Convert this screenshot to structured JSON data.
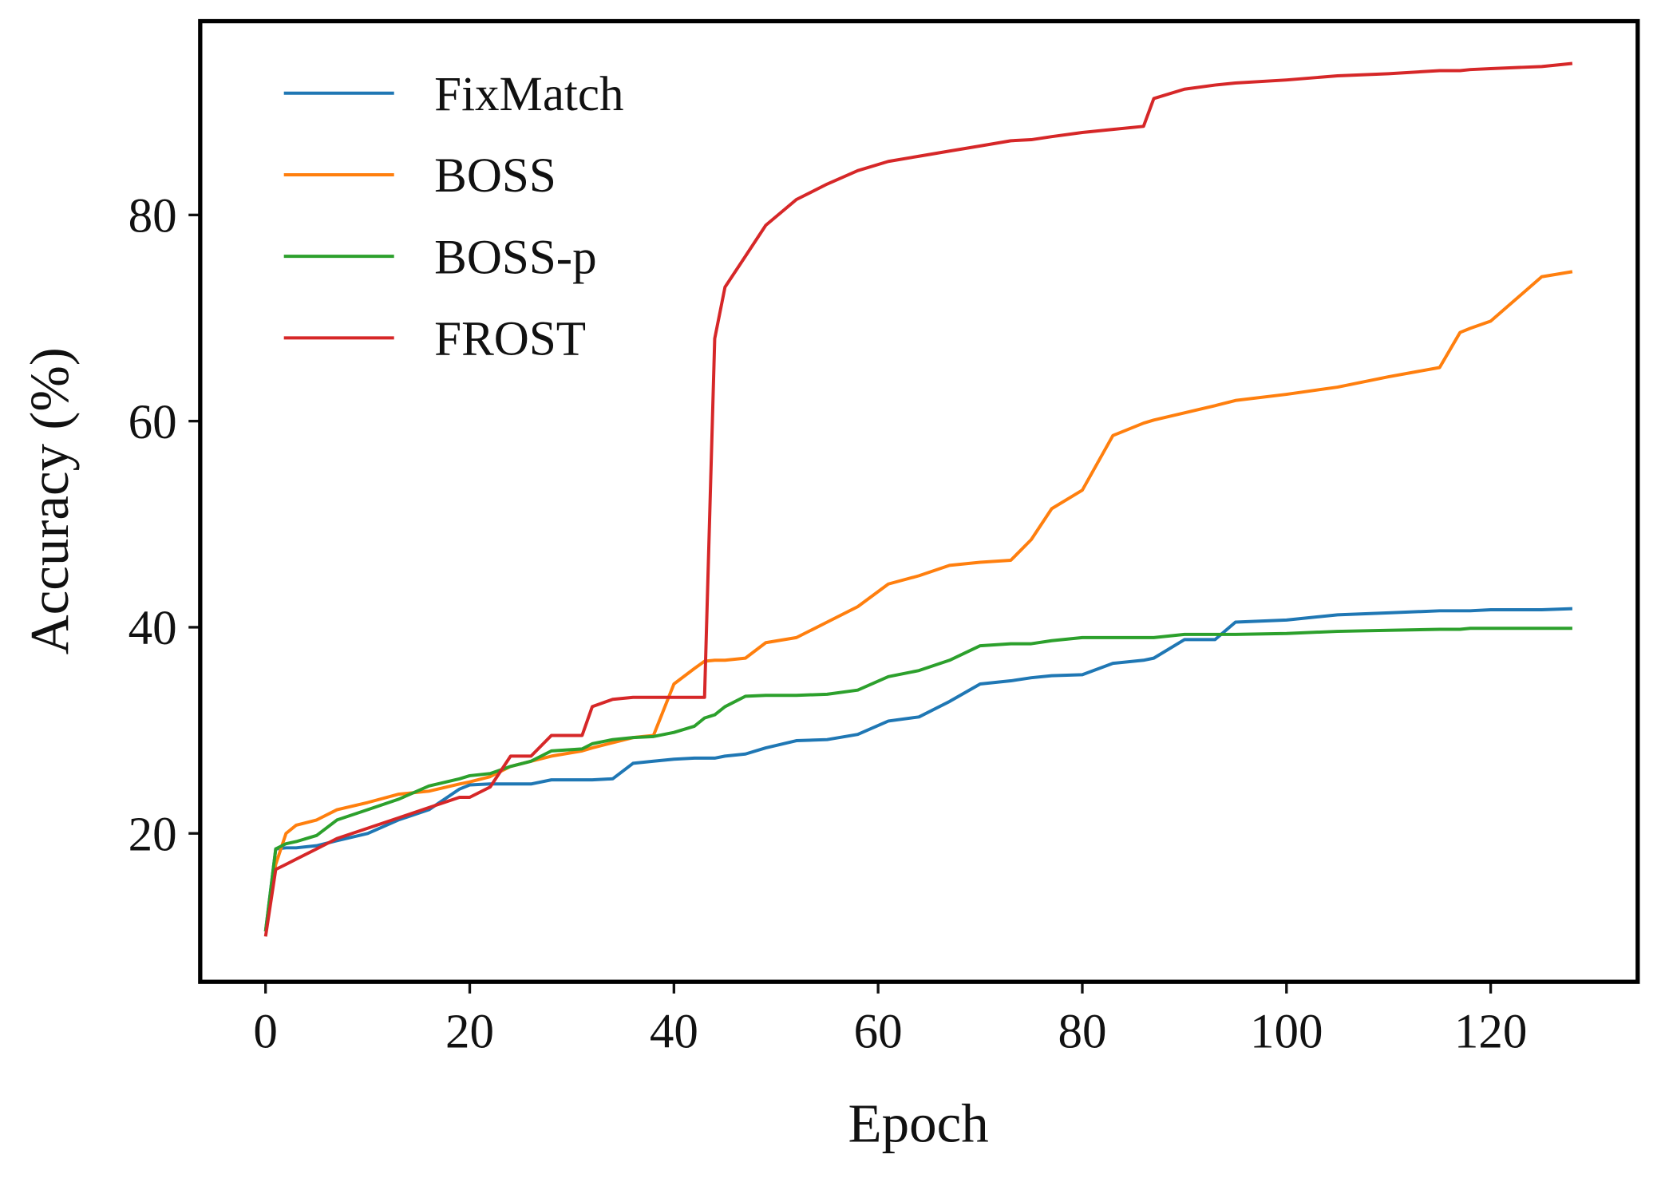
{
  "chart_data": {
    "type": "line",
    "xlabel": "Epoch",
    "ylabel": "Accuracy (%)",
    "xlim": [
      -6.4,
      134.4
    ],
    "ylim": [
      5.6,
      98.8
    ],
    "xticks": [
      0,
      20,
      40,
      60,
      80,
      100,
      120
    ],
    "yticks": [
      20,
      40,
      60,
      80
    ],
    "legend": "upper left",
    "grid": false,
    "x": [
      0,
      1,
      2,
      3,
      5,
      7,
      10,
      13,
      16,
      19,
      20,
      22,
      24,
      26,
      28,
      31,
      32,
      34,
      36,
      38,
      40,
      42,
      43,
      44,
      45,
      47,
      49,
      52,
      55,
      58,
      61,
      64,
      67,
      70,
      73,
      75,
      77,
      80,
      83,
      86,
      87,
      90,
      93,
      95,
      100,
      105,
      110,
      115,
      117,
      118,
      120,
      125,
      128
    ],
    "series": [
      {
        "name": "FixMatch",
        "color": "#1f77b4",
        "values": [
          10.5,
          18.5,
          18.6,
          18.6,
          18.8,
          19.3,
          20,
          21.3,
          22.3,
          24.3,
          24.7,
          24.8,
          24.8,
          24.8,
          25.2,
          25.2,
          25.2,
          25.3,
          26.8,
          27,
          27.2,
          27.3,
          27.3,
          27.3,
          27.5,
          27.7,
          28.3,
          29,
          29.1,
          29.6,
          30.9,
          31.3,
          32.8,
          34.5,
          34.8,
          35.1,
          35.3,
          35.4,
          36.5,
          36.8,
          37,
          38.8,
          38.8,
          40.5,
          40.7,
          41.2,
          41.4,
          41.6,
          41.6,
          41.6,
          41.7,
          41.7,
          41.8
        ]
      },
      {
        "name": "BOSS",
        "color": "#ff7f0e",
        "values": [
          10.5,
          17,
          20,
          20.8,
          21.3,
          22.3,
          23,
          23.8,
          24.1,
          24.8,
          25,
          25.5,
          26.5,
          27,
          27.5,
          28,
          28.3,
          28.8,
          29.3,
          29.5,
          34.5,
          36,
          36.7,
          36.8,
          36.8,
          37,
          38.5,
          39,
          40.5,
          42,
          44.2,
          45,
          46,
          46.3,
          46.5,
          48.5,
          51.5,
          53.3,
          58.6,
          59.8,
          60.1,
          60.8,
          61.5,
          62,
          62.6,
          63.3,
          64.3,
          65.2,
          68.6,
          69,
          69.7,
          74,
          74.5
        ]
      },
      {
        "name": "BOSS-p",
        "color": "#2ca02c",
        "values": [
          10.5,
          18.5,
          19,
          19.2,
          19.8,
          21.3,
          22.3,
          23.3,
          24.6,
          25.3,
          25.6,
          25.8,
          26.5,
          27,
          28,
          28.2,
          28.7,
          29.1,
          29.3,
          29.4,
          29.8,
          30.4,
          31.2,
          31.5,
          32.3,
          33.3,
          33.4,
          33.4,
          33.5,
          33.9,
          35.2,
          35.8,
          36.8,
          38.2,
          38.4,
          38.4,
          38.7,
          39,
          39,
          39,
          39,
          39.3,
          39.3,
          39.3,
          39.4,
          39.6,
          39.7,
          39.8,
          39.8,
          39.9,
          39.9,
          39.9,
          39.9
        ]
      },
      {
        "name": "FROST",
        "color": "#d62728",
        "values": [
          10,
          16.5,
          17,
          17.5,
          18.5,
          19.5,
          20.5,
          21.5,
          22.5,
          23.5,
          23.5,
          24.5,
          27.5,
          27.5,
          29.5,
          29.5,
          32.3,
          33,
          33.2,
          33.2,
          33.2,
          33.2,
          33.2,
          68,
          73,
          76,
          79,
          81.5,
          83,
          84.3,
          85.2,
          85.7,
          86.2,
          86.7,
          87.2,
          87.3,
          87.6,
          88,
          88.3,
          88.6,
          91.3,
          92.2,
          92.6,
          92.8,
          93.1,
          93.5,
          93.7,
          94,
          94,
          94.1,
          94.2,
          94.4,
          94.7
        ]
      }
    ]
  }
}
